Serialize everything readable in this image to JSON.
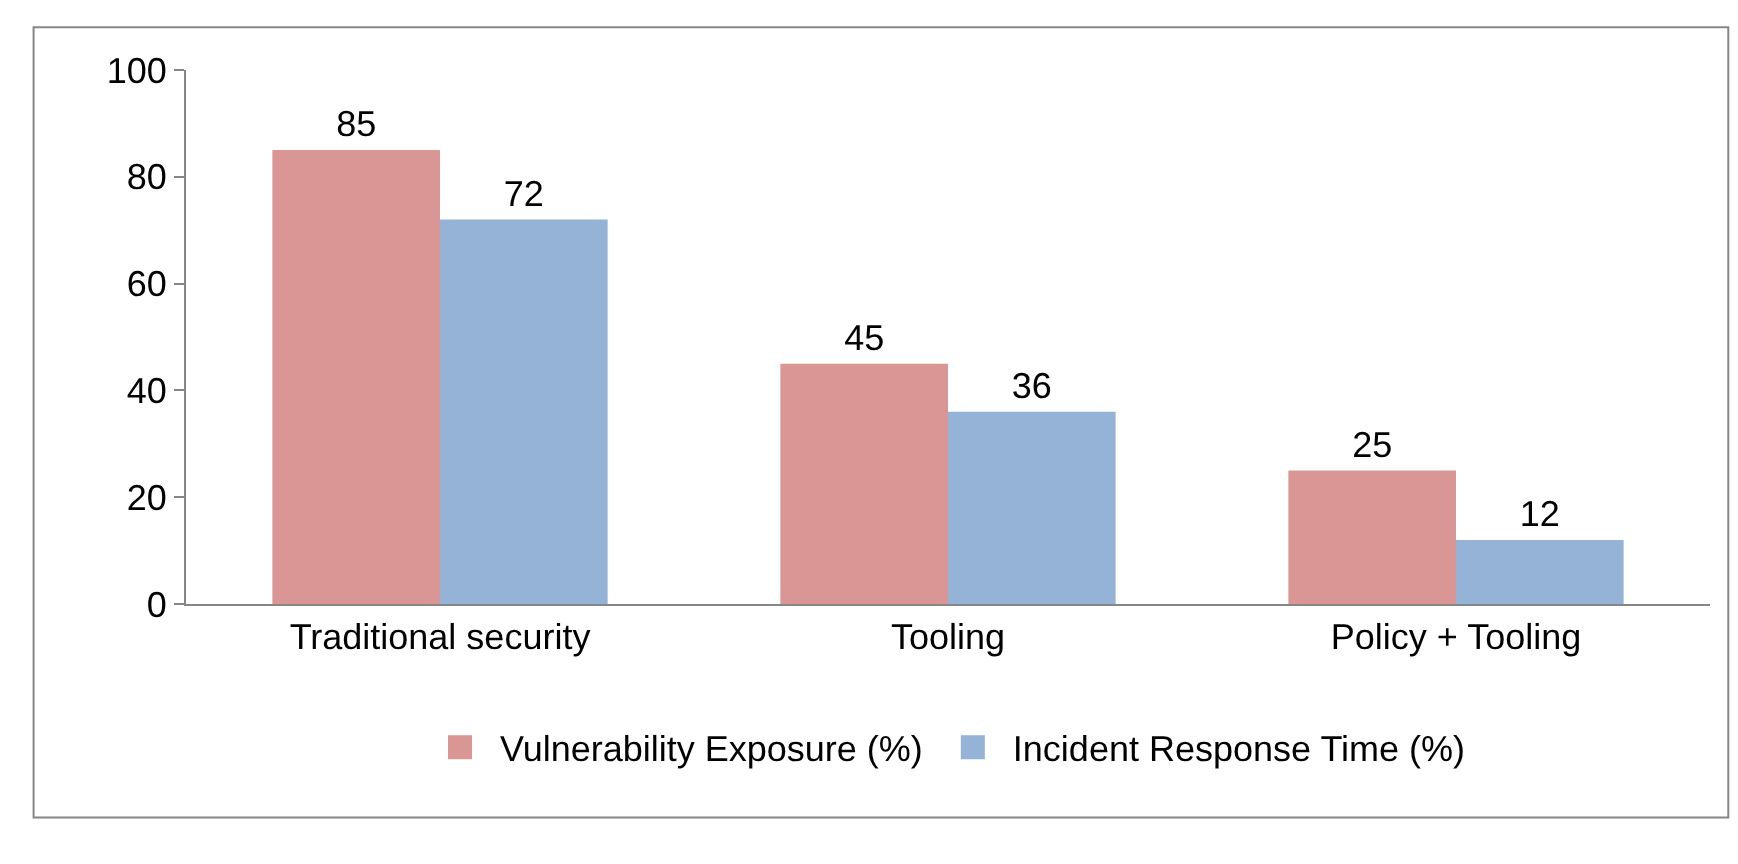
{
  "chart_data": {
    "type": "bar",
    "categories": [
      "Traditional security",
      "Tooling",
      "Policy + Tooling"
    ],
    "series": [
      {
        "name": "Vulnerability Exposure (%)",
        "color": "#d99694",
        "values": [
          85,
          45,
          25
        ]
      },
      {
        "name": "Incident Response Time (%)",
        "color": "#95b3d7",
        "values": [
          72,
          36,
          12
        ]
      }
    ],
    "ylim": [
      0,
      100
    ],
    "yticks": [
      0,
      20,
      40,
      60,
      80,
      100
    ],
    "data_labels": true,
    "legend": "bottom"
  }
}
